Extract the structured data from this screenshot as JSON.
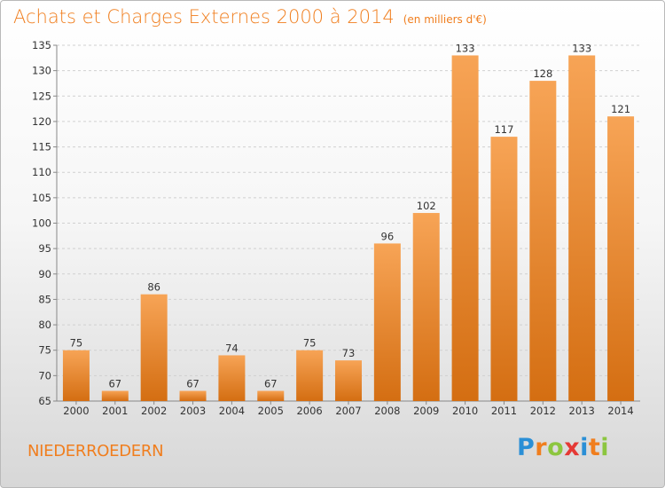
{
  "header": {
    "title": "Achats et Charges Externes 2000 à 2014",
    "subtitle": "(en milliers d'€)"
  },
  "footer": {
    "commune": "NIEDERROEDERN",
    "logo": [
      "P",
      "r",
      "o",
      "x",
      "i",
      "t",
      "i"
    ],
    "logo_colors": [
      "#2a8fd6",
      "#f07e1e",
      "#8cc63f",
      "#e53935",
      "#2a8fd6",
      "#f07e1e",
      "#8cc63f"
    ]
  },
  "colors": {
    "bar_light": "#f7a456",
    "bar_dark": "#d46e12",
    "text": "#f07e1e",
    "axis": "#888888",
    "grid": "#d0d0d0"
  },
  "chart_data": {
    "type": "bar",
    "title": "Achats et Charges Externes 2000 à 2014",
    "subtitle": "(en milliers d'€)",
    "categories": [
      "2000",
      "2001",
      "2002",
      "2003",
      "2004",
      "2005",
      "2006",
      "2007",
      "2008",
      "2009",
      "2010",
      "2011",
      "2012",
      "2013",
      "2014"
    ],
    "values": [
      75,
      67,
      86,
      67,
      74,
      67,
      75,
      73,
      96,
      102,
      133,
      117,
      128,
      133,
      121
    ],
    "ylim": [
      65,
      135
    ],
    "yticks": [
      65,
      70,
      75,
      80,
      85,
      90,
      95,
      100,
      105,
      110,
      115,
      120,
      125,
      130,
      135
    ],
    "grid": true,
    "xlabel": "",
    "ylabel": ""
  }
}
